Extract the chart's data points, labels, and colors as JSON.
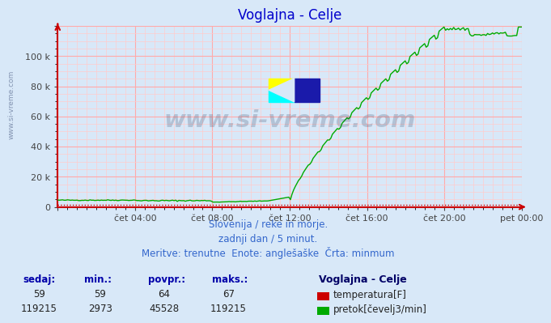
{
  "title": "Voglajna - Celje",
  "bg_color": "#d8e8f8",
  "plot_bg_color": "#d8e8f8",
  "grid_color_major": "#ffaaaa",
  "grid_color_minor": "#ffcccc",
  "title_color": "#0000cc",
  "axis_color": "#cc0000",
  "tick_color": "#444444",
  "watermark_text": "www.si-vreme.com",
  "watermark_color": "#2a3f5f",
  "watermark_alpha": 0.22,
  "subtitle_lines": [
    "Slovenija / reke in morje.",
    "zadnji dan / 5 minut.",
    "Meritve: trenutne  Enote: anglešaške  Črta: minmum"
  ],
  "subtitle_color": "#3366cc",
  "footer_labels": [
    "sedaj:",
    "min.:",
    "povpr.:",
    "maks.:"
  ],
  "footer_label_color": "#0000aa",
  "series1_label": "temperatura[F]",
  "series1_color": "#cc0000",
  "series2_label": "pretok[čevelj3/min]",
  "series2_color": "#00aa00",
  "station_label": "Voglajna - Celje",
  "footer_row1": [
    59,
    59,
    64,
    67
  ],
  "footer_row2": [
    119215,
    2973,
    45528,
    119215
  ],
  "ylim": [
    0,
    120000
  ],
  "yticks": [
    0,
    20000,
    40000,
    60000,
    80000,
    100000,
    120000
  ],
  "ytick_labels": [
    "0",
    "20 k",
    "40 k",
    "60 k",
    "80 k",
    "100 k",
    ""
  ],
  "xtick_labels": [
    "cet 04:00",
    "cet 08:00",
    "cet 12:00",
    "cet 16:00",
    "cet 20:00",
    "pet 00:00"
  ],
  "xtick_labels_display": [
    "čet 04:00",
    "čet 08:00",
    "čet 12:00",
    "čet 16:00",
    "čet 20:00",
    "pet 00:00"
  ],
  "n_points": 288
}
